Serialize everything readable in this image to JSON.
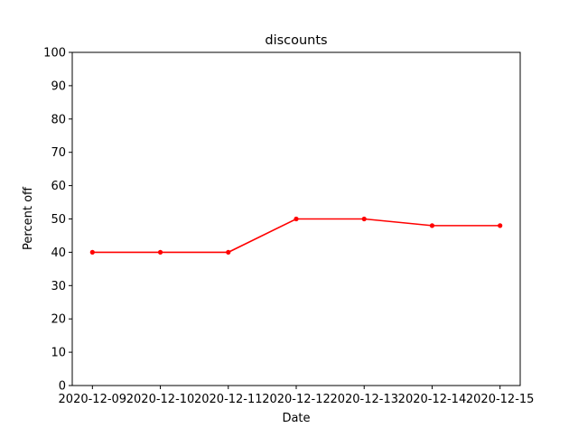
{
  "chart_data": {
    "type": "line",
    "title": "discounts",
    "xlabel": "Date",
    "ylabel": "Percent off",
    "x": [
      "2020-12-09",
      "2020-12-10",
      "2020-12-11",
      "2020-12-12",
      "2020-12-13",
      "2020-12-14",
      "2020-12-15"
    ],
    "series": [
      {
        "values": [
          40,
          40,
          40,
          50,
          50,
          48,
          48
        ],
        "color": "#ff0000",
        "marker": "point"
      }
    ],
    "ylim": [
      0,
      100
    ],
    "yticks": [
      0,
      10,
      20,
      30,
      40,
      50,
      60,
      70,
      80,
      90,
      100
    ],
    "grid": false,
    "legend": "none"
  }
}
